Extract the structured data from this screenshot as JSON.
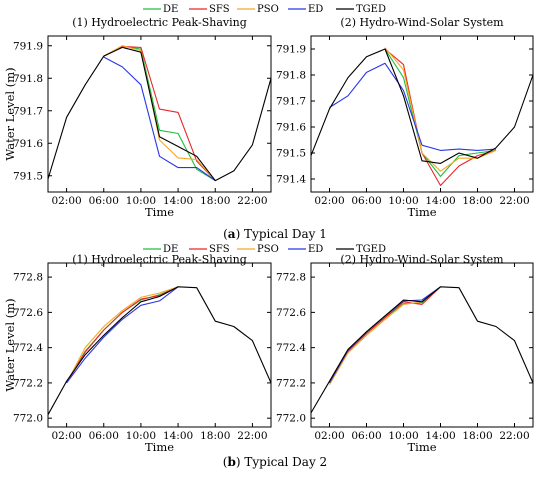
{
  "legend": [
    {
      "name": "DE",
      "color": "#1fbf3f"
    },
    {
      "name": "SFS",
      "color": "#e8262a"
    },
    {
      "name": "PSO",
      "color": "#f5a623"
    },
    {
      "name": "ED",
      "color": "#2a36e8"
    },
    {
      "name": "TGED",
      "color": "#000000"
    }
  ],
  "captions": [
    {
      "letter": "a",
      "text": "Typical Day 1"
    },
    {
      "letter": "b",
      "text": "Typical Day 2"
    }
  ],
  "chart_data": [
    {
      "type": "line",
      "title": "(1) Hydroelectric Peak-Shaving",
      "xlabel": "Time",
      "ylabel": "Water Level (m)",
      "x_ticks": [
        "02:00",
        "06:00",
        "10:00",
        "14:00",
        "18:00",
        "22:00"
      ],
      "x_tick_hours": [
        2,
        6,
        10,
        14,
        18,
        22
      ],
      "xlim": [
        0,
        24
      ],
      "ylim": [
        791.45,
        791.93
      ],
      "y_ticks": [
        791.5,
        791.6,
        791.7,
        791.8,
        791.9
      ],
      "series": [
        {
          "name": "DE",
          "x": [
            6,
            8,
            10,
            12,
            14,
            16,
            18
          ],
          "y": [
            791.868,
            791.898,
            791.89,
            791.64,
            791.63,
            791.52,
            791.485
          ]
        },
        {
          "name": "SFS",
          "x": [
            6,
            8,
            10,
            12,
            14,
            16,
            18
          ],
          "y": [
            791.868,
            791.898,
            791.895,
            791.705,
            791.695,
            791.545,
            791.485
          ]
        },
        {
          "name": "PSO",
          "x": [
            6,
            8,
            10,
            12,
            14,
            16,
            18
          ],
          "y": [
            791.868,
            791.9,
            791.885,
            791.61,
            791.555,
            791.55,
            791.485
          ]
        },
        {
          "name": "ED",
          "x": [
            6,
            8,
            10,
            12,
            14,
            16,
            18
          ],
          "y": [
            791.865,
            791.835,
            791.78,
            791.56,
            791.525,
            791.525,
            791.485
          ]
        },
        {
          "name": "TGED",
          "x": [
            0,
            2,
            4,
            6,
            8,
            10,
            12,
            14,
            16,
            18,
            20,
            22,
            24
          ],
          "y": [
            791.49,
            791.68,
            791.78,
            791.868,
            791.895,
            791.88,
            791.62,
            791.59,
            791.56,
            791.485,
            791.515,
            791.595,
            791.8
          ]
        }
      ]
    },
    {
      "type": "line",
      "title": "(2) Hydro-Wind-Solar System",
      "xlabel": "Time",
      "ylabel": "",
      "x_ticks": [
        "02:00",
        "06:00",
        "10:00",
        "14:00",
        "18:00",
        "22:00"
      ],
      "x_tick_hours": [
        2,
        6,
        10,
        14,
        18,
        22
      ],
      "xlim": [
        0,
        24
      ],
      "ylim": [
        791.35,
        791.95
      ],
      "y_ticks": [
        791.4,
        791.5,
        791.6,
        791.7,
        791.8,
        791.9
      ],
      "series": [
        {
          "name": "DE",
          "x": [
            8,
            10,
            12,
            14,
            16,
            18,
            20
          ],
          "y": [
            791.9,
            791.79,
            791.5,
            791.41,
            791.49,
            791.5,
            791.51
          ]
        },
        {
          "name": "SFS",
          "x": [
            8,
            10,
            12,
            14,
            16,
            18,
            20
          ],
          "y": [
            791.9,
            791.84,
            791.5,
            791.375,
            791.45,
            791.49,
            791.51
          ]
        },
        {
          "name": "PSO",
          "x": [
            8,
            10,
            12,
            14,
            16,
            18,
            20
          ],
          "y": [
            791.905,
            791.82,
            791.5,
            791.43,
            791.48,
            791.48,
            791.51
          ]
        },
        {
          "name": "ED",
          "x": [
            2,
            4,
            6,
            8,
            10,
            12,
            14,
            16,
            18,
            20
          ],
          "y": [
            791.675,
            791.72,
            791.81,
            791.845,
            791.74,
            791.53,
            791.51,
            791.515,
            791.51,
            791.515
          ]
        },
        {
          "name": "TGED",
          "x": [
            0,
            2,
            4,
            6,
            8,
            10,
            12,
            14,
            16,
            18,
            20,
            22,
            24
          ],
          "y": [
            791.49,
            791.67,
            791.79,
            791.87,
            791.9,
            791.72,
            791.47,
            791.46,
            791.5,
            791.48,
            791.52,
            791.6,
            791.8
          ]
        }
      ]
    },
    {
      "type": "line",
      "title": "(1) Hydroelectric Peak-Shaving",
      "xlabel": "Time",
      "ylabel": "Water Level (m)",
      "x_ticks": [
        "02:00",
        "06:00",
        "10:00",
        "14:00",
        "18:00",
        "22:00"
      ],
      "x_tick_hours": [
        2,
        6,
        10,
        14,
        18,
        22
      ],
      "xlim": [
        0,
        24
      ],
      "ylim": [
        771.95,
        772.88
      ],
      "y_ticks": [
        772.0,
        772.2,
        772.4,
        772.6,
        772.8
      ],
      "series": [
        {
          "name": "DE",
          "x": [
            2,
            4,
            6,
            8,
            10,
            12,
            14
          ],
          "y": [
            772.2,
            772.38,
            772.5,
            772.6,
            772.67,
            772.7,
            772.745
          ]
        },
        {
          "name": "SFS",
          "x": [
            2,
            4,
            6,
            8,
            10,
            12,
            14
          ],
          "y": [
            772.2,
            772.375,
            772.5,
            772.6,
            772.675,
            772.695,
            772.745
          ]
        },
        {
          "name": "PSO",
          "x": [
            2,
            4,
            6,
            8,
            10,
            12,
            14
          ],
          "y": [
            772.2,
            772.4,
            772.52,
            772.61,
            772.685,
            772.71,
            772.745
          ]
        },
        {
          "name": "ED",
          "x": [
            2,
            4,
            6,
            8,
            10,
            12,
            14
          ],
          "y": [
            772.2,
            772.34,
            772.46,
            772.56,
            772.64,
            772.665,
            772.745
          ]
        },
        {
          "name": "TGED",
          "x": [
            0,
            2,
            4,
            6,
            8,
            10,
            12,
            14,
            16,
            18,
            20,
            22,
            24
          ],
          "y": [
            772.02,
            772.21,
            772.36,
            772.47,
            772.57,
            772.66,
            772.69,
            772.745,
            772.74,
            772.55,
            772.52,
            772.44,
            772.2
          ]
        }
      ]
    },
    {
      "type": "line",
      "title": "(2) Hydro-Wind-Solar System",
      "xlabel": "Time",
      "ylabel": "",
      "x_ticks": [
        "02:00",
        "06:00",
        "10:00",
        "14:00",
        "18:00",
        "22:00"
      ],
      "x_tick_hours": [
        2,
        6,
        10,
        14,
        18,
        22
      ],
      "xlim": [
        0,
        24
      ],
      "ylim": [
        771.95,
        772.88
      ],
      "y_ticks": [
        772.0,
        772.2,
        772.4,
        772.6,
        772.8
      ],
      "series": [
        {
          "name": "DE",
          "x": [
            2,
            4,
            6,
            8,
            10,
            12,
            14
          ],
          "y": [
            772.2,
            772.38,
            772.48,
            772.57,
            772.65,
            772.655,
            772.745
          ]
        },
        {
          "name": "SFS",
          "x": [
            2,
            4,
            6,
            8,
            10,
            12,
            14
          ],
          "y": [
            772.2,
            772.38,
            772.48,
            772.57,
            772.66,
            772.645,
            772.745
          ]
        },
        {
          "name": "PSO",
          "x": [
            2,
            4,
            6,
            8,
            10,
            12,
            14
          ],
          "y": [
            772.19,
            772.37,
            772.47,
            772.56,
            772.645,
            772.66,
            772.745
          ]
        },
        {
          "name": "ED",
          "x": [
            2,
            4,
            6,
            8,
            10,
            12,
            14
          ],
          "y": [
            772.2,
            772.385,
            772.49,
            772.58,
            772.665,
            772.67,
            772.745
          ]
        },
        {
          "name": "TGED",
          "x": [
            0,
            2,
            4,
            6,
            8,
            10,
            12,
            14,
            16,
            18,
            20,
            22,
            24
          ],
          "y": [
            772.03,
            772.21,
            772.39,
            772.49,
            772.58,
            772.67,
            772.66,
            772.745,
            772.74,
            772.55,
            772.52,
            772.44,
            772.2
          ]
        }
      ]
    }
  ]
}
